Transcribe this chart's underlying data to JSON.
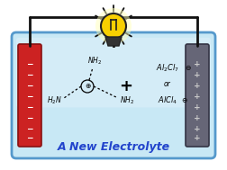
{
  "bg_color": "#ffffff",
  "cell_color": "#c8e8f5",
  "cell_color2": "#a0d0ee",
  "cell_border_color": "#5599cc",
  "anode_color": "#cc2222",
  "anode_edge": "#881111",
  "cathode_color": "#666677",
  "cathode_edge": "#333344",
  "wire_color": "#111111",
  "bulb_yellow": "#f8d000",
  "bulb_glow": "#ffffbb",
  "bulb_dark": "#222222",
  "text_electrolyte": "A New Electrolyte",
  "text_color_electrolyte": "#2244cc",
  "spike_angles": [
    30,
    60,
    90,
    120,
    150,
    210,
    240,
    270,
    300,
    330
  ]
}
